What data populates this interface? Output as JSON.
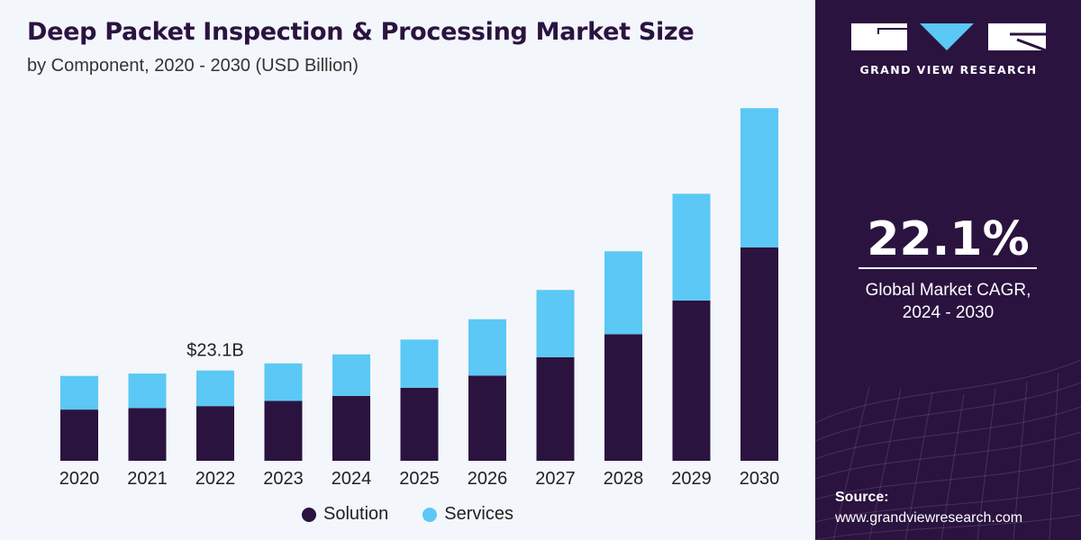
{
  "header": {
    "title": "Deep Packet Inspection & Processing Market Size",
    "subtitle": "by Component, 2020 - 2030 (USD Billion)"
  },
  "chart_data": {
    "type": "bar",
    "stacked": true,
    "title": "Deep Packet Inspection & Processing Market Size",
    "subtitle": "by Component, 2020 - 2030 (USD Billion)",
    "categories": [
      "2020",
      "2021",
      "2022",
      "2023",
      "2024",
      "2025",
      "2026",
      "2027",
      "2028",
      "2029",
      "2030"
    ],
    "series": [
      {
        "name": "Solution",
        "color": "#2b1340",
        "values": [
          13.1,
          13.5,
          14.0,
          15.3,
          16.6,
          18.7,
          21.8,
          26.5,
          32.4,
          41.0,
          54.6
        ]
      },
      {
        "name": "Services",
        "color": "#5bc8f5",
        "values": [
          8.6,
          8.8,
          9.1,
          9.6,
          10.6,
          12.3,
          14.4,
          17.2,
          21.2,
          27.3,
          35.6
        ]
      }
    ],
    "annotations": [
      {
        "category": "2022",
        "text": "$23.1B"
      }
    ],
    "ylim": [
      0,
      93
    ],
    "grid": false,
    "legend": "bottom-center"
  },
  "legend": {
    "items": [
      {
        "label": "Solution",
        "color": "#2b1340"
      },
      {
        "label": "Services",
        "color": "#5bc8f5"
      }
    ]
  },
  "sidebar": {
    "brand": "GRAND VIEW RESEARCH",
    "cagr_value": "22.1%",
    "cagr_label_line1": "Global Market CAGR,",
    "cagr_label_line2": "2024 - 2030",
    "source_title": "Source:",
    "source_url": "www.grandviewresearch.com"
  },
  "colors": {
    "brand_dark": "#2b1340",
    "accent_light_blue": "#5bc8f5",
    "background": "#f3f6fb"
  }
}
